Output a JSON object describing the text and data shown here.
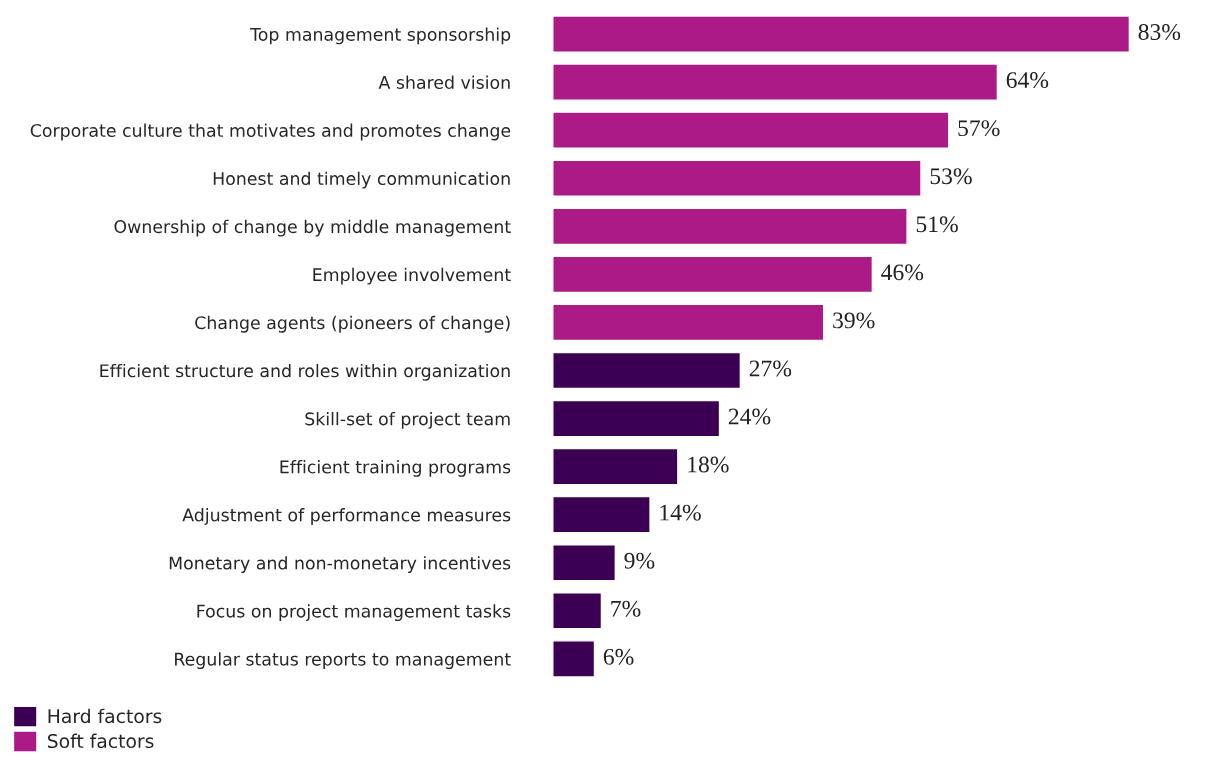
{
  "chart_data": {
    "type": "bar",
    "orientation": "horizontal",
    "tick_labels": "y",
    "grid": false,
    "legend": "bottom left",
    "categories": [
      "Top management sponsorship",
      "A shared vision",
      "Corporate culture that motivates and promotes change",
      "Honest and timely communication",
      "Ownership of change by middle management",
      "Employee involvement",
      "Change agents (pioneers of change)",
      "Efficient structure and roles within organization",
      "Skill-set of project team",
      "Efficient training programs",
      "Adjustment of performance measures",
      "Monetary and non-monetary incentives",
      "Focus on project management tasks",
      "Regular status reports to management"
    ],
    "series": [
      {
        "name": "Hard factors",
        "color": "#3b0053",
        "values": [
          null,
          null,
          null,
          null,
          null,
          null,
          null,
          27,
          24,
          18,
          14,
          9,
          7,
          6
        ],
        "value_labels": [
          null,
          null,
          null,
          null,
          null,
          null,
          null,
          "27%",
          "24%",
          "18%",
          "14%",
          "9%",
          "7%",
          "6%"
        ]
      },
      {
        "name": "Soft factors",
        "color": "#ab1a86",
        "values": [
          83,
          64,
          57,
          53,
          51,
          46,
          39,
          null,
          null,
          null,
          null,
          null,
          null,
          null
        ],
        "value_labels": [
          "83%",
          "64%",
          "57%",
          "53%",
          "51%",
          "46%",
          "39%",
          null,
          null,
          null,
          null,
          null,
          null,
          null
        ]
      }
    ]
  }
}
